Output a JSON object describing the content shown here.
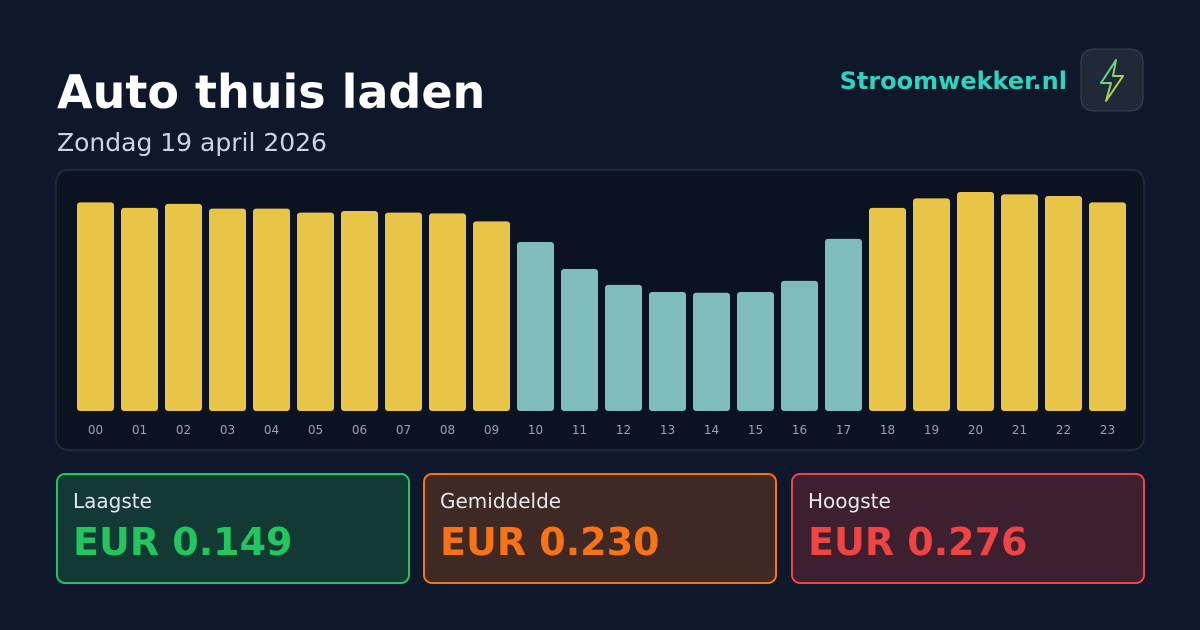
{
  "header": {
    "title": "Auto thuis laden",
    "subtitle": "Zondag 19 april 2026",
    "brand": "Stroomwekker.nl"
  },
  "chart_data": {
    "type": "bar",
    "categories": [
      "00",
      "01",
      "02",
      "03",
      "04",
      "05",
      "06",
      "07",
      "08",
      "09",
      "10",
      "11",
      "12",
      "13",
      "14",
      "15",
      "16",
      "17",
      "18",
      "19",
      "20",
      "21",
      "22",
      "23"
    ],
    "values": [
      0.263,
      0.256,
      0.261,
      0.255,
      0.255,
      0.25,
      0.252,
      0.25,
      0.249,
      0.239,
      0.213,
      0.179,
      0.159,
      0.15,
      0.149,
      0.15,
      0.164,
      0.217,
      0.256,
      0.268,
      0.276,
      0.273,
      0.271,
      0.263
    ],
    "colors": [
      "#e8c547",
      "#e8c547",
      "#e8c547",
      "#e8c547",
      "#e8c547",
      "#e8c547",
      "#e8c547",
      "#e8c547",
      "#e8c547",
      "#e8c547",
      "#7fbcbc",
      "#7fbcbc",
      "#7fbcbc",
      "#7fbcbc",
      "#7fbcbc",
      "#7fbcbc",
      "#7fbcbc",
      "#7fbcbc",
      "#e8c547",
      "#e8c547",
      "#e8c547",
      "#e8c547",
      "#e8c547",
      "#e8c547"
    ]
  },
  "stats": [
    {
      "label": "Laagste",
      "value": "EUR 0.149",
      "color": "#22c55e"
    },
    {
      "label": "Gemiddelde",
      "value": "EUR 0.230",
      "color": "#f97316"
    },
    {
      "label": "Hoogste",
      "value": "EUR 0.276",
      "color": "#ef4444"
    }
  ]
}
